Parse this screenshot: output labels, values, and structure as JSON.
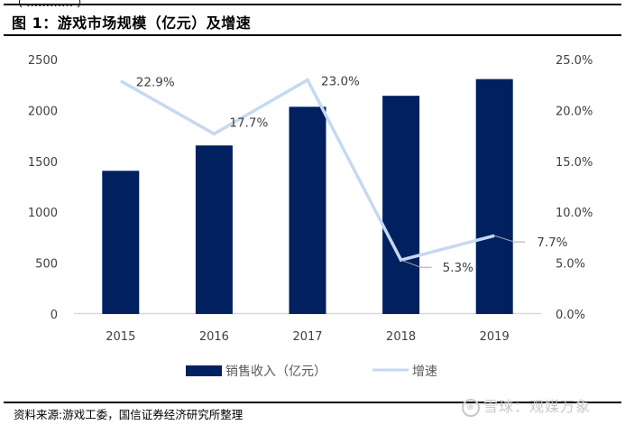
{
  "header": {
    "cutoff_text": "（ ………… ）",
    "title": "图 1：游戏市场规模（亿元）及增速"
  },
  "footer": {
    "source": "资料来源:游戏工委，国信证券经济研究所整理",
    "watermark": "雪球：观媒万象",
    "watermark_icon": "xueqiu-logo-icon"
  },
  "colors": {
    "bar": "#002060",
    "line": "#c6d9f1",
    "leader": "#a6a6a6",
    "axis": "#d9d9d9",
    "text": "#404040"
  },
  "chart_data": {
    "type": "bar+line",
    "title": "图 1：游戏市场规模（亿元）及增速",
    "categories": [
      "2015",
      "2016",
      "2017",
      "2018",
      "2019"
    ],
    "series": [
      {
        "name": "销售收入（亿元）",
        "type": "bar",
        "axis": "left",
        "values": [
          1407,
          1656,
          2036,
          2144,
          2308
        ]
      },
      {
        "name": "增速",
        "type": "line",
        "axis": "right",
        "values": [
          22.9,
          17.7,
          23.0,
          5.3,
          7.7
        ],
        "labels": [
          "22.9%",
          "17.7%",
          "23.0%",
          "5.3%",
          "7.7%"
        ]
      }
    ],
    "y_left": {
      "min": 0,
      "max": 2500,
      "ticks": [
        "0",
        "500",
        "1000",
        "1500",
        "2000",
        "2500"
      ]
    },
    "y_right": {
      "min": 0,
      "max": 25,
      "ticks": [
        "0.0%",
        "5.0%",
        "10.0%",
        "15.0%",
        "20.0%",
        "25.0%"
      ]
    },
    "xlabel": "",
    "ylabel": "",
    "grid": false,
    "legend": {
      "placement": "bottom",
      "entries": [
        "销售收入（亿元）",
        "增速"
      ]
    }
  }
}
